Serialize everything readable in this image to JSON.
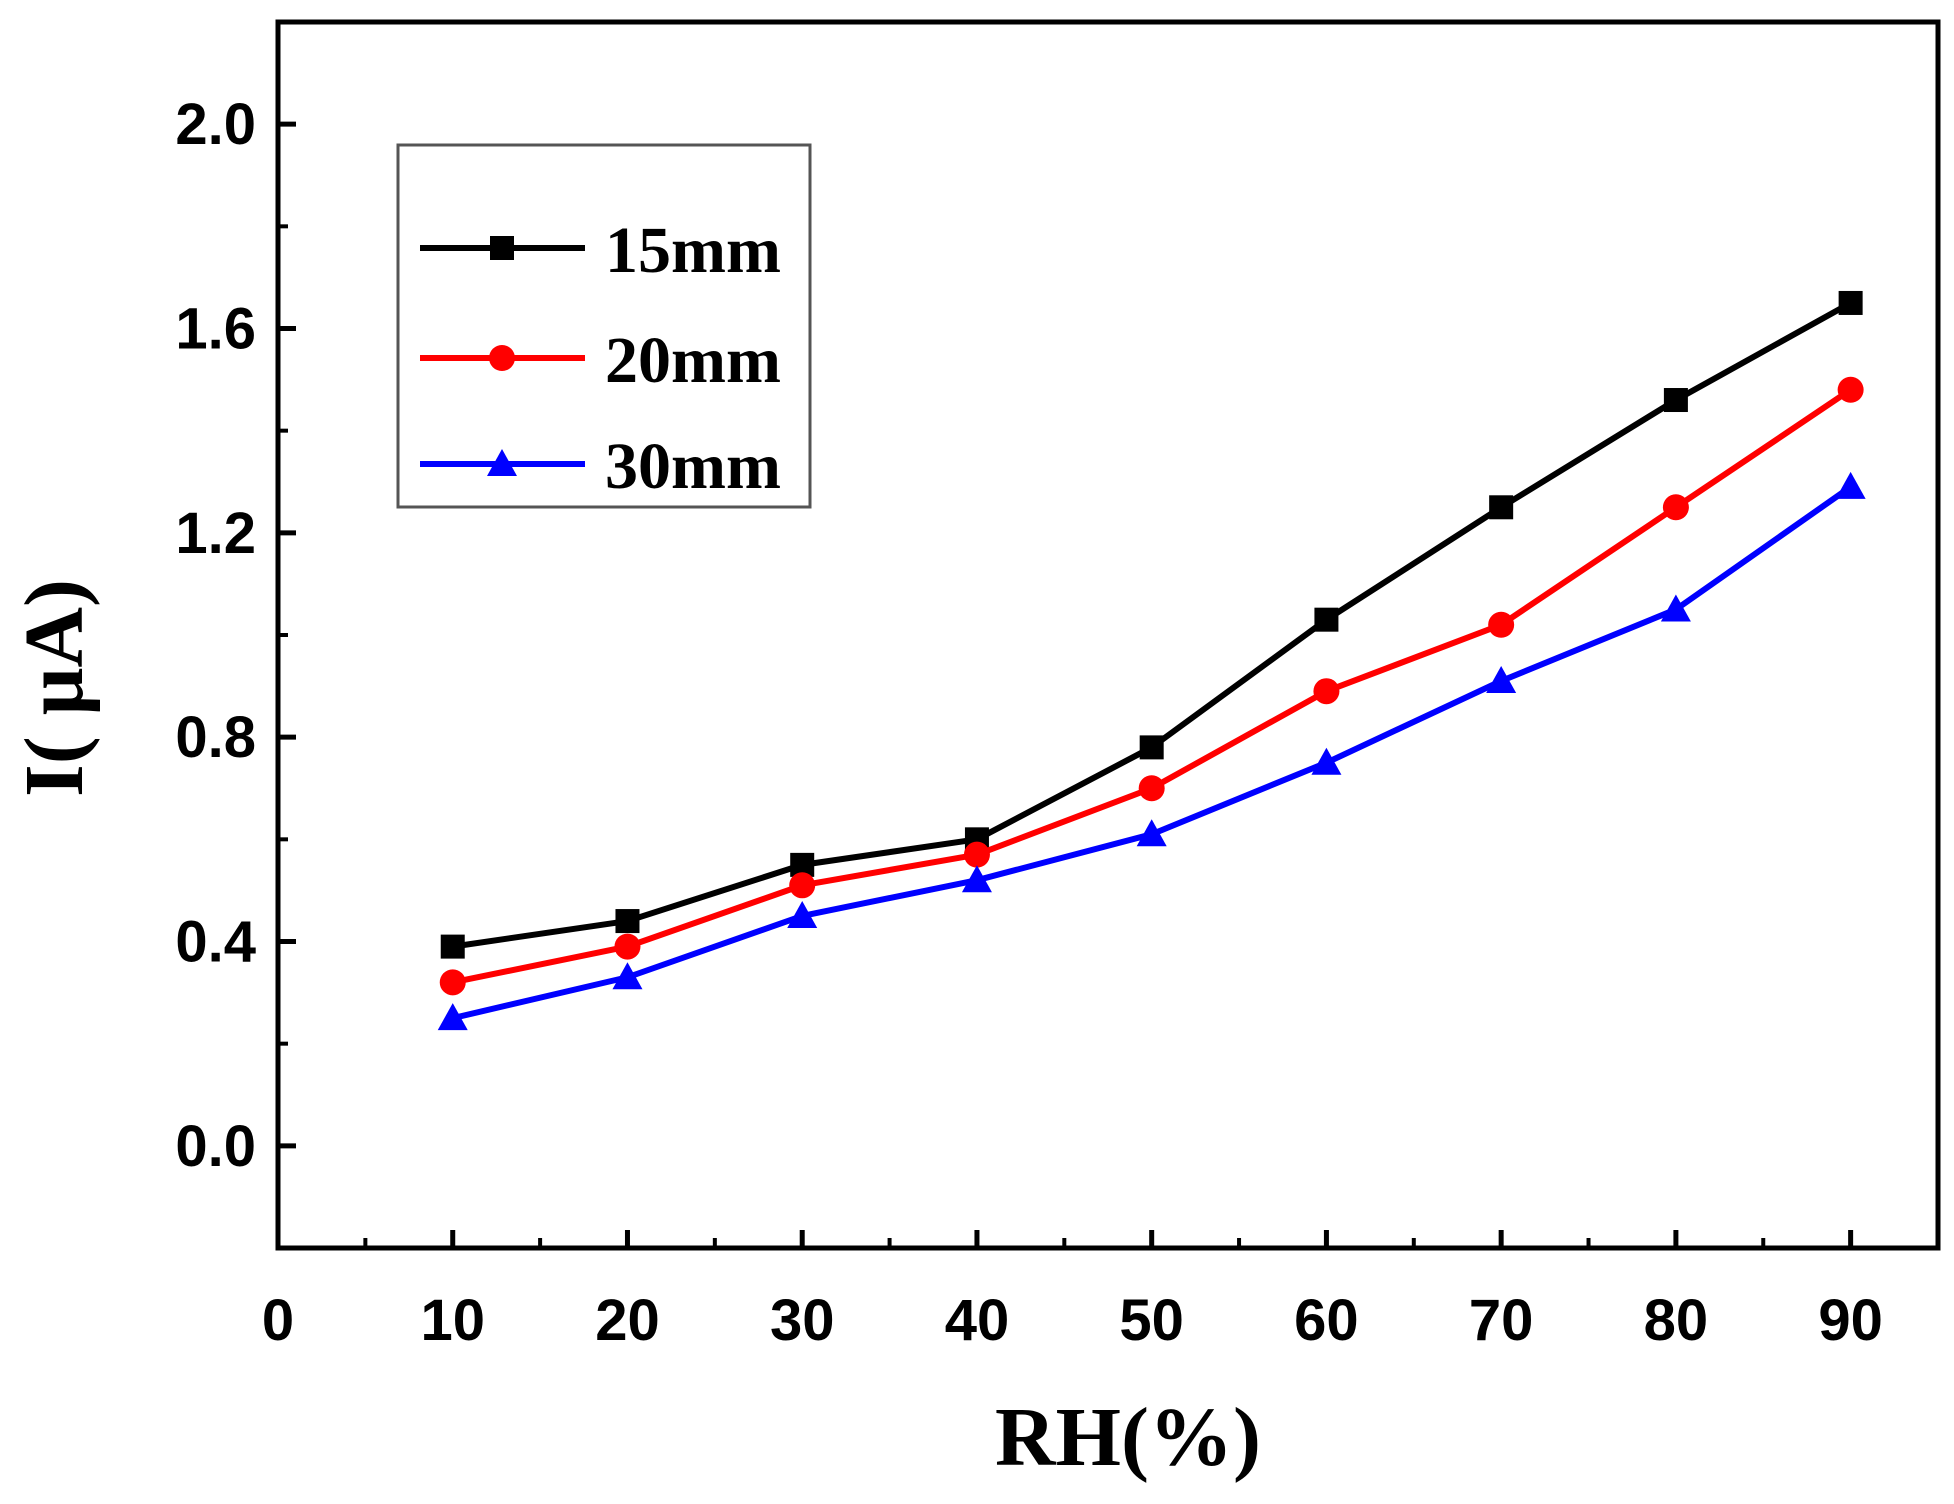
{
  "chart_data": {
    "type": "line",
    "title": "",
    "xlabel": "RH(%)",
    "ylabel": "I( μA)",
    "xlim": [
      0,
      95
    ],
    "ylim": [
      -0.2,
      2.2
    ],
    "xticks": [
      "0",
      "10",
      "20",
      "30",
      "40",
      "50",
      "60",
      "70",
      "80",
      "90"
    ],
    "yticks": [
      "0.0",
      "0.4",
      "0.8",
      "1.2",
      "1.6",
      "2.0"
    ],
    "x": [
      10,
      20,
      30,
      40,
      50,
      60,
      70,
      80,
      90
    ],
    "legend_position": "top-left",
    "series": [
      {
        "name": "15mm",
        "color": "#000000",
        "marker": "square",
        "values": [
          0.39,
          0.44,
          0.55,
          0.6,
          0.78,
          1.03,
          1.25,
          1.46,
          1.65
        ]
      },
      {
        "name": "20mm",
        "color": "#ff0000",
        "marker": "circle",
        "values": [
          0.32,
          0.39,
          0.51,
          0.57,
          0.7,
          0.89,
          1.02,
          1.25,
          1.48
        ]
      },
      {
        "name": "30mm",
        "color": "#0000ff",
        "marker": "triangle",
        "values": [
          0.25,
          0.33,
          0.45,
          0.52,
          0.61,
          0.75,
          0.91,
          1.05,
          1.29
        ]
      }
    ]
  }
}
